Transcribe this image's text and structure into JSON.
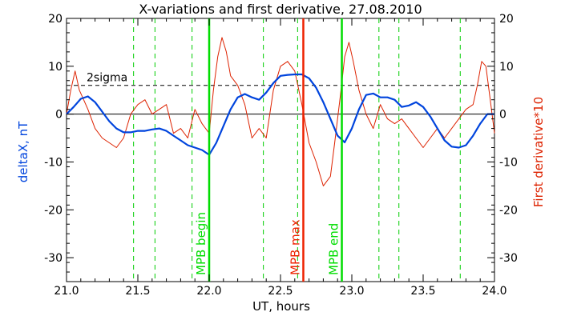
{
  "chart_data": {
    "type": "line",
    "title": "X-variations and first derivative, 27.08.2010",
    "xlabel": "UT, hours",
    "ylabel_left": "deltaX, nT",
    "ylabel_right": "First derivative*10",
    "xlim": [
      21.0,
      24.0
    ],
    "ylim": [
      -35,
      20
    ],
    "x_ticks": [
      "21.0",
      "21.5",
      "22.0",
      "22.5",
      "23.0",
      "23.5",
      "24.0"
    ],
    "y_ticks": [
      "20",
      "10",
      "0",
      "-10",
      "-20",
      "-30"
    ],
    "sigma_label": "2sigma",
    "sigma_level": 6,
    "zero_level": 0,
    "colors": {
      "deltaX": "#0044dd",
      "derivative": "#dd2200",
      "mpb_edges": "#00dd00",
      "mpb_max": "#ee2200",
      "dashed_green": "#00cc00"
    },
    "dashed_green_x": [
      21.47,
      21.62,
      21.88,
      22.38,
      22.62,
      23.19,
      23.33,
      23.76
    ],
    "markers": [
      {
        "x": 22.0,
        "label": "MPB begin",
        "kind": "edge"
      },
      {
        "x": 22.66,
        "label": "MPB max",
        "kind": "max"
      },
      {
        "x": 22.93,
        "label": "MPB end",
        "kind": "edge"
      }
    ],
    "series": [
      {
        "name": "deltaX",
        "axis": "left",
        "x": [
          21.0,
          21.05,
          21.1,
          21.15,
          21.2,
          21.25,
          21.3,
          21.35,
          21.4,
          21.45,
          21.5,
          21.55,
          21.6,
          21.65,
          21.7,
          21.75,
          21.8,
          21.85,
          21.9,
          21.95,
          22.0,
          22.05,
          22.1,
          22.15,
          22.2,
          22.25,
          22.3,
          22.35,
          22.4,
          22.45,
          22.5,
          22.55,
          22.6,
          22.65,
          22.7,
          22.75,
          22.8,
          22.85,
          22.9,
          22.95,
          23.0,
          23.05,
          23.1,
          23.15,
          23.2,
          23.25,
          23.3,
          23.35,
          23.4,
          23.45,
          23.5,
          23.55,
          23.6,
          23.65,
          23.7,
          23.75,
          23.8,
          23.85,
          23.9,
          23.95,
          24.0
        ],
        "values": [
          0,
          1.5,
          3.2,
          3.7,
          2.5,
          0.5,
          -1.5,
          -3.0,
          -3.8,
          -3.8,
          -3.5,
          -3.5,
          -3.2,
          -3.0,
          -3.5,
          -4.5,
          -5.5,
          -6.5,
          -7.0,
          -7.5,
          -8.5,
          -6.0,
          -2.5,
          1.0,
          3.5,
          4.2,
          3.5,
          3.0,
          4.5,
          6.5,
          8.0,
          8.2,
          8.3,
          8.3,
          7.5,
          5.5,
          2.5,
          -1.0,
          -4.5,
          -5.9,
          -3.0,
          1.0,
          4.0,
          4.3,
          3.5,
          3.5,
          3.0,
          1.5,
          1.8,
          2.5,
          1.5,
          -0.5,
          -3.0,
          -5.5,
          -6.8,
          -7.0,
          -6.5,
          -4.5,
          -2.0,
          0.0,
          0.0
        ]
      },
      {
        "name": "First derivative*10",
        "axis": "right",
        "x": [
          21.0,
          21.03,
          21.06,
          21.09,
          21.12,
          21.15,
          21.2,
          21.25,
          21.3,
          21.35,
          21.4,
          21.45,
          21.5,
          21.55,
          21.6,
          21.65,
          21.7,
          21.75,
          21.8,
          21.85,
          21.9,
          21.95,
          22.0,
          22.03,
          22.06,
          22.09,
          22.12,
          22.15,
          22.2,
          22.25,
          22.3,
          22.35,
          22.4,
          22.45,
          22.5,
          22.55,
          22.6,
          22.65,
          22.7,
          22.75,
          22.8,
          22.85,
          22.88,
          22.92,
          22.95,
          22.98,
          23.01,
          23.05,
          23.1,
          23.15,
          23.2,
          23.25,
          23.3,
          23.35,
          23.4,
          23.45,
          23.5,
          23.55,
          23.6,
          23.65,
          23.7,
          23.75,
          23.8,
          23.85,
          23.88,
          23.91,
          23.94,
          23.97,
          24.0
        ],
        "values": [
          0,
          5,
          9,
          5,
          3,
          1,
          -3,
          -5,
          -6,
          -7,
          -5,
          0,
          2,
          3,
          0,
          1,
          2,
          -4,
          -3,
          -5,
          1,
          -2,
          -4,
          5,
          12,
          16,
          13,
          8,
          6,
          2,
          -5,
          -3,
          -5,
          5,
          10,
          11,
          9,
          2,
          -6,
          -10,
          -15,
          -13,
          -6,
          4,
          12,
          15,
          11,
          5,
          0,
          -3,
          2,
          -1,
          -2,
          -1,
          -3,
          -5,
          -7,
          -5,
          -3,
          -5,
          -3,
          -1,
          1,
          2,
          6,
          11,
          10,
          3,
          -4
        ]
      }
    ]
  }
}
